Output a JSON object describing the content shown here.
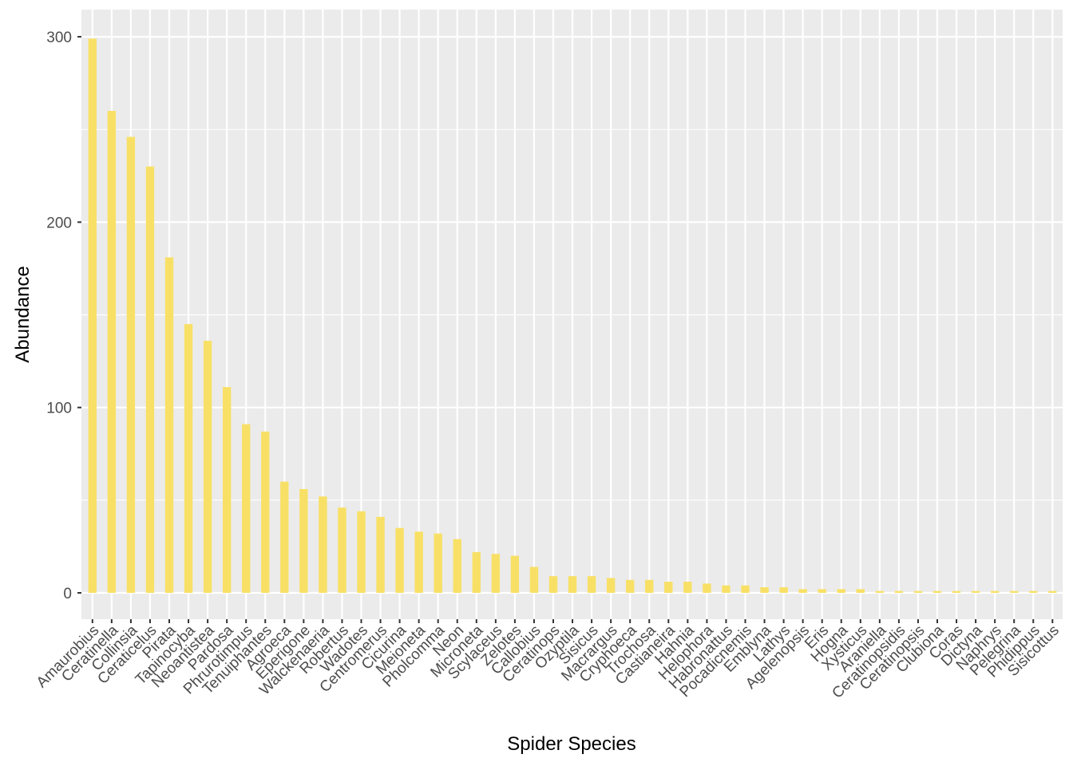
{
  "chart_data": {
    "type": "bar",
    "xlabel": "Spider Species",
    "ylabel": "Abundance",
    "ylim": [
      -15,
      315
    ],
    "yticks": [
      0,
      100,
      200,
      300
    ],
    "grid": true,
    "legend": "none",
    "colors": {
      "bar": "#f8e066",
      "panel": "#ebebeb",
      "grid": "#ffffff",
      "text": "#4d4d4d"
    },
    "categories": [
      "Amaurobius",
      "Ceratinella",
      "Collinsia",
      "Ceraticelus",
      "Pirata",
      "Tapinocyba",
      "Neoantistea",
      "Pardosa",
      "Phrurotimpus",
      "Tenuiphantes",
      "Agroeca",
      "Eperigone",
      "Walckenaeria",
      "Robertus",
      "Wadotes",
      "Centromerus",
      "Cicurina",
      "Meioneta",
      "Pholcomma",
      "Neon",
      "Microneta",
      "Scylaceus",
      "Zelotes",
      "Callobius",
      "Ceratinops",
      "Ozyptila",
      "Sisicus",
      "Macrargus",
      "Cryphoeca",
      "Trochosa",
      "Castianeira",
      "Hahnia",
      "Helophora",
      "Habronattus",
      "Pocadicnemis",
      "Emblyna",
      "Lathys",
      "Agelenopsis",
      "Eris",
      "Hogna",
      "Xysticus",
      "Araniella",
      "Ceratinopsidis",
      "Ceratinopsis",
      "Clubiona",
      "Coras",
      "Dictyna",
      "Naphrys",
      "Pelegrina",
      "Phidippus",
      "Sisicottus"
    ],
    "values": [
      299,
      260,
      246,
      230,
      181,
      145,
      136,
      111,
      91,
      87,
      60,
      56,
      52,
      46,
      44,
      41,
      35,
      33,
      32,
      29,
      22,
      21,
      20,
      14,
      9,
      9,
      9,
      8,
      7,
      7,
      6,
      6,
      5,
      4,
      4,
      3,
      3,
      2,
      2,
      2,
      2,
      1,
      1,
      1,
      1,
      1,
      1,
      1,
      1,
      1,
      1
    ]
  }
}
